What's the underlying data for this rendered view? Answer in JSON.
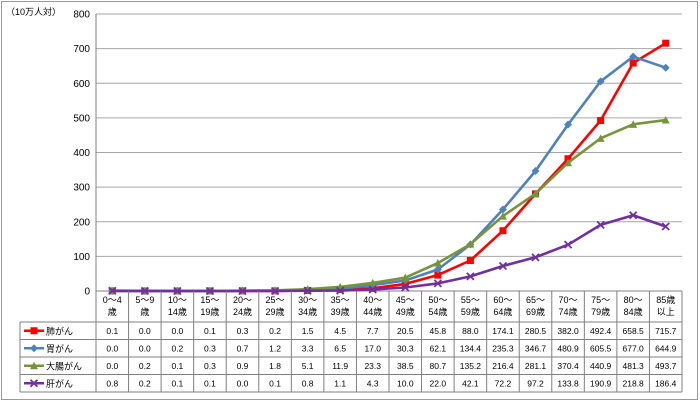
{
  "chart_data": {
    "type": "line",
    "ylabel": "（10万人対）",
    "ylim": [
      0,
      800
    ],
    "yticks": [
      0,
      100,
      200,
      300,
      400,
      500,
      600,
      700,
      800
    ],
    "grid": true,
    "legend": "data-table-left",
    "categories": [
      [
        "0～4",
        "歳"
      ],
      [
        "5～9",
        "歳"
      ],
      [
        "10～",
        "14歳"
      ],
      [
        "15～",
        "19歳"
      ],
      [
        "20～",
        "24歳"
      ],
      [
        "25～",
        "29歳"
      ],
      [
        "30～",
        "34歳"
      ],
      [
        "35～",
        "39歳"
      ],
      [
        "40～",
        "44歳"
      ],
      [
        "45～",
        "49歳"
      ],
      [
        "50～",
        "54歳"
      ],
      [
        "55～",
        "59歳"
      ],
      [
        "60～",
        "64歳"
      ],
      [
        "65～",
        "69歳"
      ],
      [
        "70～",
        "74歳"
      ],
      [
        "75～",
        "79歳"
      ],
      [
        "80～",
        "84歳"
      ],
      [
        "85歳",
        "以上"
      ]
    ],
    "series": [
      {
        "name": "肺がん",
        "color": "#ff0000",
        "marker": "square",
        "values": [
          0.1,
          0.0,
          0.0,
          0.1,
          0.3,
          0.2,
          1.5,
          4.5,
          7.7,
          20.5,
          45.8,
          88.0,
          174.1,
          280.5,
          382.0,
          492.4,
          658.5,
          715.7
        ]
      },
      {
        "name": "胃がん",
        "color": "#4f81bd",
        "marker": "diamond",
        "values": [
          0.0,
          0.0,
          0.2,
          0.3,
          0.7,
          1.2,
          3.3,
          6.5,
          17.0,
          30.3,
          62.1,
          134.4,
          235.3,
          346.7,
          480.9,
          605.5,
          677.0,
          644.9
        ]
      },
      {
        "name": "大腸がん",
        "color": "#77933c",
        "marker": "triangle",
        "values": [
          0.0,
          0.2,
          0.1,
          0.3,
          0.9,
          1.8,
          5.1,
          11.9,
          23.3,
          38.5,
          80.7,
          135.2,
          216.4,
          281.1,
          370.4,
          440.9,
          481.3,
          493.7
        ]
      },
      {
        "name": "肝がん",
        "color": "#7030a0",
        "marker": "x",
        "values": [
          0.8,
          0.2,
          0.1,
          0.1,
          0.0,
          0.1,
          0.8,
          1.1,
          4.3,
          10.0,
          22.0,
          42.1,
          72.2,
          97.2,
          133.8,
          190.9,
          218.8,
          186.4
        ]
      }
    ]
  }
}
